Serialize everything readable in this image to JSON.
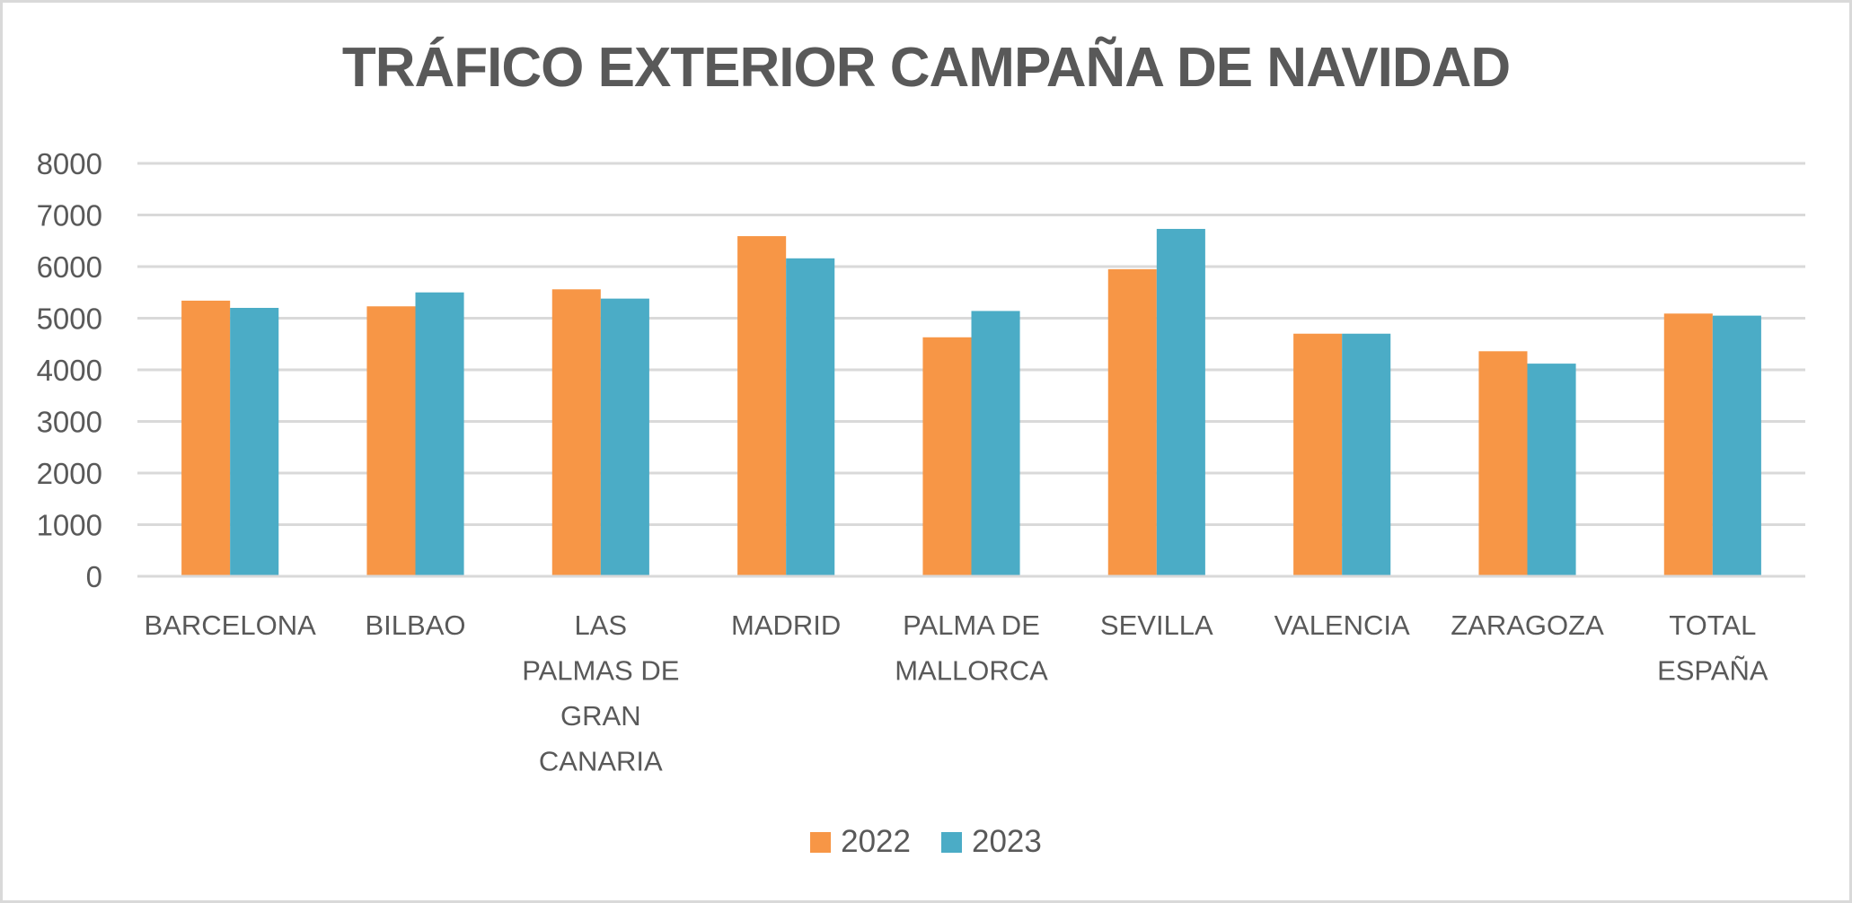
{
  "chart_data": {
    "type": "bar",
    "title": "TRÁFICO EXTERIOR CAMPAÑA DE NAVIDAD",
    "xlabel": "",
    "ylabel": "",
    "ylim": [
      0,
      8000
    ],
    "yticks": [
      "0",
      "1000",
      "2000",
      "3000",
      "4000",
      "5000",
      "6000",
      "7000",
      "8000"
    ],
    "grid": true,
    "legend_position": "bottom",
    "categories": [
      [
        "BARCELONA"
      ],
      [
        "BILBAO"
      ],
      [
        "LAS",
        "PALMAS DE",
        "GRAN",
        "CANARIA"
      ],
      [
        "MADRID"
      ],
      [
        "PALMA DE",
        "MALLORCA"
      ],
      [
        "SEVILLA"
      ],
      [
        "VALENCIA"
      ],
      [
        "ZARAGOZA"
      ],
      [
        "TOTAL",
        "ESPAÑA"
      ]
    ],
    "series": [
      {
        "name": "2022",
        "color": "#F79646",
        "values": [
          5340,
          5230,
          5560,
          6590,
          4630,
          5950,
          4700,
          4360,
          5090
        ]
      },
      {
        "name": "2023",
        "color": "#4BACC6",
        "values": [
          5200,
          5500,
          5380,
          6160,
          5140,
          6730,
          4700,
          4120,
          5050
        ]
      }
    ]
  }
}
